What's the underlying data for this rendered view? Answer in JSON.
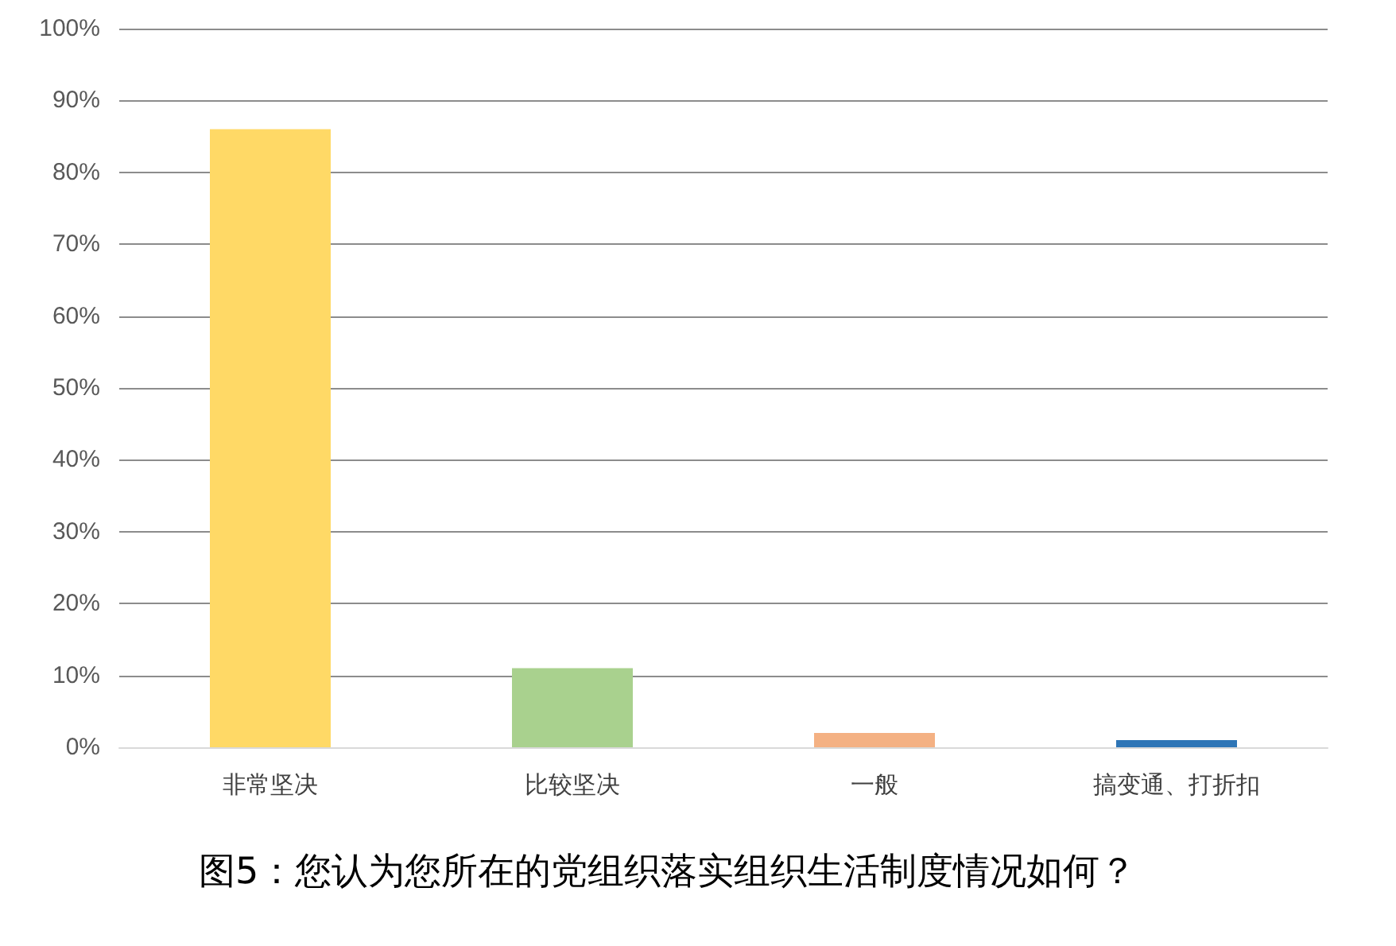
{
  "chart_data": {
    "type": "bar",
    "title": "图5：您认为您所在的党组织落实组织生活制度情况如何？",
    "categories": [
      "非常坚决",
      "比较坚决",
      "一般",
      "搞变通、打折扣"
    ],
    "values": [
      86,
      11,
      2,
      1
    ],
    "colors": [
      "#ffd966",
      "#a9d18e",
      "#f4b183",
      "#2e75b6"
    ],
    "ylim": [
      0,
      100
    ],
    "yticks": [
      {
        "value": 0,
        "label": "0%"
      },
      {
        "value": 10,
        "label": "10%"
      },
      {
        "value": 20,
        "label": "20%"
      },
      {
        "value": 30,
        "label": "30%"
      },
      {
        "value": 40,
        "label": "40%"
      },
      {
        "value": 50,
        "label": "50%"
      },
      {
        "value": 60,
        "label": "60%"
      },
      {
        "value": 70,
        "label": "70%"
      },
      {
        "value": 80,
        "label": "80%"
      },
      {
        "value": 90,
        "label": "90%"
      },
      {
        "value": 100,
        "label": "100%"
      }
    ],
    "grid": "y"
  }
}
